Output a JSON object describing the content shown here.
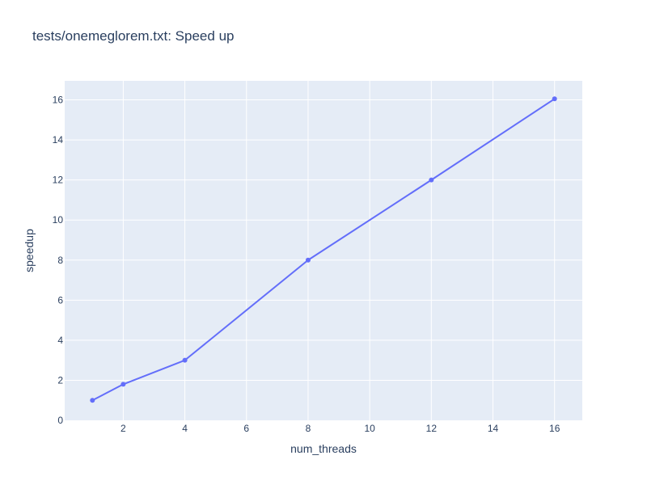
{
  "chart_data": {
    "type": "line",
    "title": "tests/onemeglorem.txt: Speed up",
    "xlabel": "num_threads",
    "ylabel": "speedup",
    "xlim": [
      0.1,
      16.9
    ],
    "ylim": [
      0,
      16.95
    ],
    "xticks": [
      2,
      4,
      6,
      8,
      10,
      12,
      14,
      16
    ],
    "yticks": [
      0,
      2,
      4,
      6,
      8,
      10,
      12,
      14,
      16
    ],
    "grid": true,
    "series": [
      {
        "color": "#636efa",
        "mode": "lines+markers",
        "x": [
          1,
          2,
          4,
          8,
          12,
          16
        ],
        "y": [
          1.0,
          1.8,
          3.0,
          8.0,
          12.0,
          16.05
        ]
      }
    ]
  },
  "colors": {
    "plot_background": "#e5ecf6",
    "grid": "#ffffff",
    "text": "#2a3f5f"
  }
}
